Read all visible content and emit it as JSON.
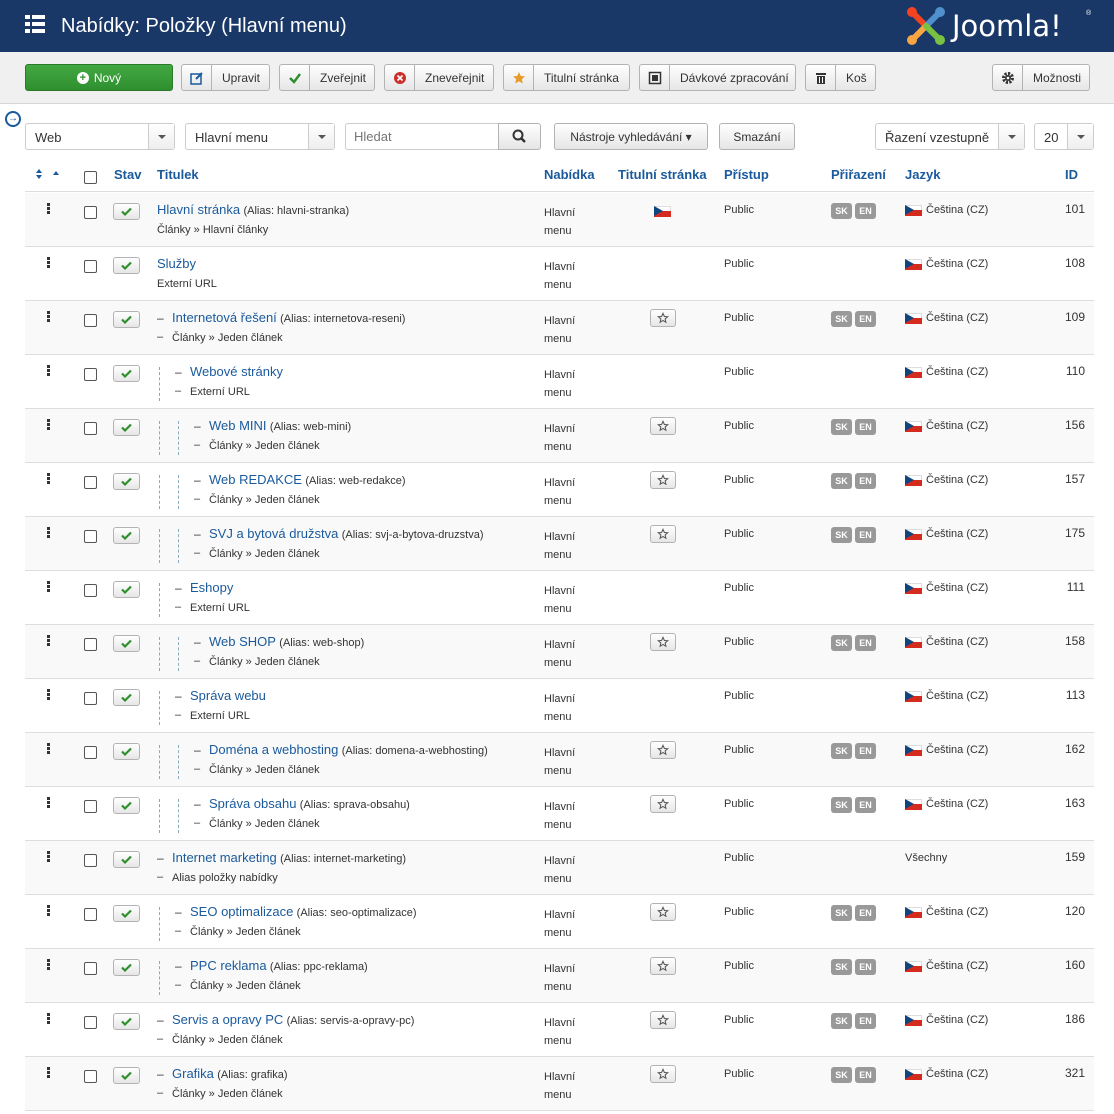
{
  "header": {
    "title": "Nabídky: Položky (Hlavní menu)",
    "logo_text": "Joomla!",
    "logo_mark": "®"
  },
  "toolbar": {
    "new_label": "Nový",
    "edit_label": "Upravit",
    "publish_label": "Zveřejnit",
    "unpublish_label": "Zneveřejnit",
    "home_label": "Titulní stránka",
    "batch_label": "Dávkové zpracování",
    "trash_label": "Koš",
    "options_label": "Možnosti"
  },
  "filters": {
    "site_value": "Web",
    "menu_value": "Hlavní menu",
    "search_placeholder": "Hledat",
    "search_tools_label": "Nástroje vyhledávání ▾",
    "clear_label": "Smazání",
    "ordering_value": "Řazení vzestupně",
    "limit_value": "20"
  },
  "columns": {
    "status": "Stav",
    "title": "Titulek",
    "menu": "Nabídka",
    "home": "Titulní stránka",
    "access": "Přístup",
    "association": "Přiřazení",
    "language": "Jazyk",
    "id": "ID"
  },
  "colors": {
    "header_bg": "#1a3867",
    "link": "#1a5a9c",
    "new_button": "#3a9c3a",
    "status_check": "#2f8f2f",
    "badge": "#999999"
  },
  "rows": [
    {
      "level": 0,
      "title": "Hlavní stránka",
      "alias": "(Alias: hlavni-stranka)",
      "type": "Články » Hlavní články",
      "menu": "Hlavní menu",
      "home": "flag",
      "access": "Public",
      "assoc": true,
      "language": "Čeština (CZ)",
      "lang_flag": true,
      "id": "101"
    },
    {
      "level": 0,
      "title": "Služby",
      "alias": "",
      "type": "Externí URL",
      "menu": "Hlavní menu",
      "home": "",
      "access": "Public",
      "assoc": false,
      "language": "Čeština (CZ)",
      "lang_flag": true,
      "id": "108"
    },
    {
      "level": 1,
      "title": "Internetová řešení",
      "alias": "(Alias: internetova-reseni)",
      "type": "Články » Jeden článek",
      "menu": "Hlavní menu",
      "home": "star",
      "access": "Public",
      "assoc": true,
      "language": "Čeština (CZ)",
      "lang_flag": true,
      "id": "109"
    },
    {
      "level": 2,
      "title": "Webové stránky",
      "alias": "",
      "type": "Externí URL",
      "menu": "Hlavní menu",
      "home": "",
      "access": "Public",
      "assoc": false,
      "language": "Čeština (CZ)",
      "lang_flag": true,
      "id": "110"
    },
    {
      "level": 3,
      "title": "Web MINI",
      "alias": "(Alias: web-mini)",
      "type": "Články » Jeden článek",
      "menu": "Hlavní menu",
      "home": "star",
      "access": "Public",
      "assoc": true,
      "language": "Čeština (CZ)",
      "lang_flag": true,
      "id": "156"
    },
    {
      "level": 3,
      "title": "Web REDAKCE",
      "alias": "(Alias: web-redakce)",
      "type": "Články » Jeden článek",
      "menu": "Hlavní menu",
      "home": "star",
      "access": "Public",
      "assoc": true,
      "language": "Čeština (CZ)",
      "lang_flag": true,
      "id": "157"
    },
    {
      "level": 3,
      "title": "SVJ a bytová družstva",
      "alias": "(Alias: svj-a-bytova-druzstva)",
      "type": "Články » Jeden článek",
      "menu": "Hlavní menu",
      "home": "star",
      "access": "Public",
      "assoc": true,
      "language": "Čeština (CZ)",
      "lang_flag": true,
      "id": "175"
    },
    {
      "level": 2,
      "title": "Eshopy",
      "alias": "",
      "type": "Externí URL",
      "menu": "Hlavní menu",
      "home": "",
      "access": "Public",
      "assoc": false,
      "language": "Čeština (CZ)",
      "lang_flag": true,
      "id": "111"
    },
    {
      "level": 3,
      "title": "Web SHOP",
      "alias": "(Alias: web-shop)",
      "type": "Články » Jeden článek",
      "menu": "Hlavní menu",
      "home": "star",
      "access": "Public",
      "assoc": true,
      "language": "Čeština (CZ)",
      "lang_flag": true,
      "id": "158"
    },
    {
      "level": 2,
      "title": "Správa webu",
      "alias": "",
      "type": "Externí URL",
      "menu": "Hlavní menu",
      "home": "",
      "access": "Public",
      "assoc": false,
      "language": "Čeština (CZ)",
      "lang_flag": true,
      "id": "113"
    },
    {
      "level": 3,
      "title": "Doména a webhosting",
      "alias": "(Alias: domena-a-webhosting)",
      "type": "Články » Jeden článek",
      "menu": "Hlavní menu",
      "home": "star",
      "access": "Public",
      "assoc": true,
      "language": "Čeština (CZ)",
      "lang_flag": true,
      "id": "162"
    },
    {
      "level": 3,
      "title": "Správa obsahu",
      "alias": "(Alias: sprava-obsahu)",
      "type": "Články » Jeden článek",
      "menu": "Hlavní menu",
      "home": "star",
      "access": "Public",
      "assoc": true,
      "language": "Čeština (CZ)",
      "lang_flag": true,
      "id": "163"
    },
    {
      "level": 1,
      "title": "Internet marketing",
      "alias": "(Alias: internet-marketing)",
      "type": "Alias položky nabídky",
      "menu": "Hlavní menu",
      "home": "",
      "access": "Public",
      "assoc": false,
      "language": "Všechny",
      "lang_flag": false,
      "id": "159"
    },
    {
      "level": 2,
      "title": "SEO optimalizace",
      "alias": "(Alias: seo-optimalizace)",
      "type": "Články » Jeden článek",
      "menu": "Hlavní menu",
      "home": "star",
      "access": "Public",
      "assoc": true,
      "language": "Čeština (CZ)",
      "lang_flag": true,
      "id": "120"
    },
    {
      "level": 2,
      "title": "PPC reklama",
      "alias": "(Alias: ppc-reklama)",
      "type": "Články » Jeden článek",
      "menu": "Hlavní menu",
      "home": "star",
      "access": "Public",
      "assoc": true,
      "language": "Čeština (CZ)",
      "lang_flag": true,
      "id": "160"
    },
    {
      "level": 1,
      "title": "Servis a opravy PC",
      "alias": "(Alias: servis-a-opravy-pc)",
      "type": "Články » Jeden článek",
      "menu": "Hlavní menu",
      "home": "star",
      "access": "Public",
      "assoc": true,
      "language": "Čeština (CZ)",
      "lang_flag": true,
      "id": "186"
    },
    {
      "level": 1,
      "title": "Grafika",
      "alias": "(Alias: grafika)",
      "type": "Články » Jeden článek",
      "menu": "Hlavní menu",
      "home": "star",
      "access": "Public",
      "assoc": true,
      "language": "Čeština (CZ)",
      "lang_flag": true,
      "id": "321"
    }
  ],
  "assoc_badges": [
    "SK",
    "EN"
  ]
}
